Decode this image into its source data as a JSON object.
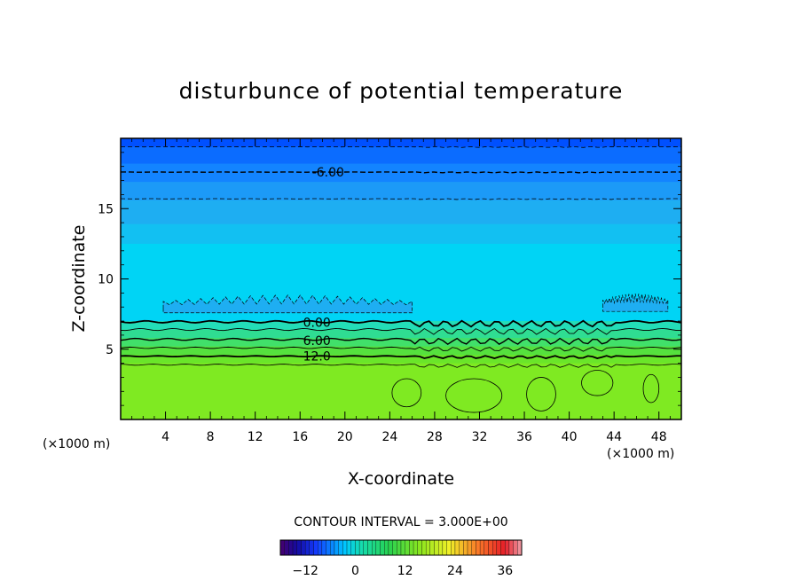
{
  "chart_data": {
    "type": "contour",
    "title": "disturbunce of potential temperature",
    "xlabel": "X-coordinate",
    "ylabel": "Z-coordinate",
    "x_unit": "(×1000 m)",
    "x_unit_right": "(×1000 m)",
    "xlim": [
      0,
      50
    ],
    "ylim": [
      0,
      20
    ],
    "x_ticks": [
      4,
      8,
      12,
      16,
      20,
      24,
      28,
      32,
      36,
      40,
      44,
      48
    ],
    "y_ticks": [
      5,
      10,
      15
    ],
    "contour_interval_text": "CONTOUR INTERVAL = 3.000E+00",
    "contour_interval": 3.0,
    "contour_labels": [
      {
        "text": "-6.00",
        "x": 18.5,
        "z": 17.6
      },
      {
        "text": "0.00",
        "x": 17.5,
        "z": 6.9
      },
      {
        "text": "6.00",
        "x": 17.5,
        "z": 5.6
      },
      {
        "text": "12.0",
        "x": 17.5,
        "z": 4.5
      }
    ],
    "colorbar": {
      "min": -18,
      "max": 40,
      "ticks": [
        -12,
        0,
        12,
        24,
        36
      ]
    },
    "field_bands": [
      {
        "z_top": 20.0,
        "z_bottom": 19.4,
        "value": -9,
        "color": "#0050ff"
      },
      {
        "z_top": 19.4,
        "z_bottom": 18.2,
        "value": -7.5,
        "color": "#0b6cff"
      },
      {
        "z_top": 18.2,
        "z_bottom": 16.9,
        "value": -6,
        "color": "#1384ff"
      },
      {
        "z_top": 16.9,
        "z_bottom": 15.6,
        "value": -4.5,
        "color": "#1c9af7"
      },
      {
        "z_top": 15.6,
        "z_bottom": 13.9,
        "value": -3,
        "color": "#1eaef2"
      },
      {
        "z_top": 13.9,
        "z_bottom": 12.5,
        "value": -2,
        "color": "#12c0f2"
      },
      {
        "z_top": 12.5,
        "z_bottom": 7.0,
        "value": -1,
        "color": "#00d4f5"
      },
      {
        "z_top": 7.0,
        "z_bottom": 6.4,
        "value": 1.5,
        "color": "#23ddb8"
      },
      {
        "z_top": 6.4,
        "z_bottom": 5.8,
        "value": 3,
        "color": "#2fdd92"
      },
      {
        "z_top": 5.8,
        "z_bottom": 5.2,
        "value": 4.5,
        "color": "#41e06a"
      },
      {
        "z_top": 5.2,
        "z_bottom": 4.6,
        "value": 6,
        "color": "#55e13e"
      },
      {
        "z_top": 4.6,
        "z_bottom": 4.0,
        "value": 9,
        "color": "#6ae52a"
      },
      {
        "z_top": 4.0,
        "z_bottom": 0.0,
        "value": 12,
        "color": "#7fea22"
      }
    ],
    "cold_patches": [
      {
        "x1": 3.8,
        "x2": 26.0,
        "z_center": 7.9,
        "value": -3
      },
      {
        "x1": 43.0,
        "x2": 48.8,
        "z_center": 8.0,
        "value": -3
      }
    ]
  }
}
